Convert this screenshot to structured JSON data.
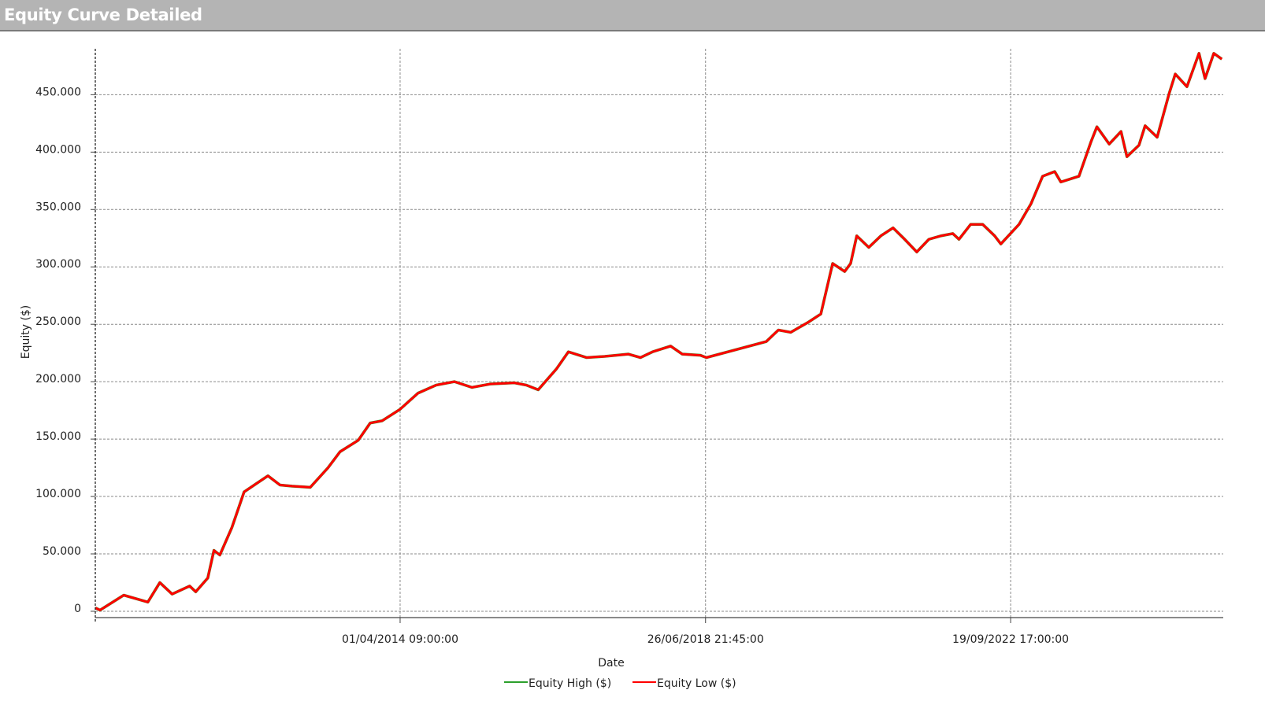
{
  "window": {
    "title": "Equity Curve Detailed"
  },
  "chart_data": {
    "type": "line",
    "title": "",
    "xlabel": "Date",
    "ylabel": "Equity ($)",
    "xlim": [
      "2010-01-08",
      "2025-09-01"
    ],
    "ylim": [
      -5500,
      490000
    ],
    "grid": true,
    "legend": "bottom-center",
    "colors": {
      "Equity High ($)": "#2ca02c",
      "Equity Low ($)": "#ff0000"
    },
    "x_ticks": [
      {
        "date": "2014-04-01T09:00:00",
        "label": "01/04/2014 09:00:00"
      },
      {
        "date": "2018-06-26T21:45:00",
        "label": "26/06/2018 21:45:00"
      },
      {
        "date": "2022-09-19T17:00:00",
        "label": "19/09/2022 17:00:00"
      }
    ],
    "y_ticks": [
      {
        "value": 0,
        "label": "0"
      },
      {
        "value": 50000,
        "label": "50.000"
      },
      {
        "value": 100000,
        "label": "100.000"
      },
      {
        "value": 150000,
        "label": "150.000"
      },
      {
        "value": 200000,
        "label": "200.000"
      },
      {
        "value": 250000,
        "label": "250.000"
      },
      {
        "value": 300000,
        "label": "300.000"
      },
      {
        "value": 350000,
        "label": "350.000"
      },
      {
        "value": 400000,
        "label": "400.000"
      },
      {
        "value": 450000,
        "label": "450.000"
      }
    ],
    "x": [
      "2010-01-08",
      "2010-02-01",
      "2010-06-01",
      "2010-10-01",
      "2010-12-01",
      "2011-02-01",
      "2011-05-01",
      "2011-06-01",
      "2011-08-01",
      "2011-09-01",
      "2011-10-01",
      "2011-12-01",
      "2012-02-01",
      "2012-04-01",
      "2012-06-01",
      "2012-08-01",
      "2012-10-01",
      "2013-01-01",
      "2013-04-01",
      "2013-06-01",
      "2013-09-01",
      "2013-11-01",
      "2014-01-01",
      "2014-04-01",
      "2014-07-01",
      "2014-10-01",
      "2015-01-01",
      "2015-04-01",
      "2015-07-01",
      "2015-11-01",
      "2016-01-01",
      "2016-03-01",
      "2016-06-01",
      "2016-08-01",
      "2016-11-01",
      "2017-02-01",
      "2017-06-01",
      "2017-08-01",
      "2017-10-01",
      "2018-01-01",
      "2018-03-01",
      "2018-06-01",
      "2018-07-01",
      "2018-12-01",
      "2019-05-01",
      "2019-07-01",
      "2019-09-01",
      "2019-12-01",
      "2020-02-01",
      "2020-04-01",
      "2020-06-01",
      "2020-07-01",
      "2020-08-01",
      "2020-10-01",
      "2020-12-01",
      "2021-02-01",
      "2021-04-01",
      "2021-06-01",
      "2021-08-01",
      "2021-10-01",
      "2021-12-01",
      "2022-01-01",
      "2022-03-01",
      "2022-05-01",
      "2022-07-01",
      "2022-08-01",
      "2022-11-01",
      "2023-01-01",
      "2023-03-01",
      "2023-05-01",
      "2023-06-01",
      "2023-09-01",
      "2023-11-01",
      "2023-12-01",
      "2024-02-01",
      "2024-04-01",
      "2024-05-01",
      "2024-07-01",
      "2024-08-01",
      "2024-10-01",
      "2024-12-01",
      "2025-01-01",
      "2025-03-01",
      "2025-05-01",
      "2025-06-01",
      "2025-07-15",
      "2025-08-25"
    ],
    "series": [
      {
        "name": "Equity High ($)",
        "values": [
          3000,
          1000,
          14000,
          8000,
          25000,
          15000,
          22000,
          17000,
          29000,
          53000,
          49000,
          73000,
          104000,
          111000,
          118000,
          110000,
          109000,
          108000,
          125000,
          139000,
          149000,
          164000,
          166000,
          176000,
          190000,
          197000,
          200000,
          195000,
          198000,
          199000,
          197000,
          193000,
          211000,
          226000,
          221000,
          222000,
          224000,
          221000,
          226000,
          231000,
          224000,
          223000,
          221000,
          228000,
          235000,
          245000,
          243000,
          252000,
          259000,
          303000,
          296000,
          303000,
          327000,
          317000,
          327000,
          334000,
          324000,
          313000,
          324000,
          327000,
          329000,
          324000,
          337000,
          337000,
          327000,
          320000,
          337000,
          355000,
          379000,
          383000,
          374000,
          379000,
          409000,
          422000,
          407000,
          418000,
          396000,
          406000,
          423000,
          413000,
          451000,
          468000,
          457000,
          486000,
          464000,
          486000,
          481000
        ]
      },
      {
        "name": "Equity Low ($)",
        "values": [
          3000,
          1000,
          14000,
          8000,
          25000,
          15000,
          22000,
          17000,
          29000,
          53000,
          49000,
          73000,
          104000,
          111000,
          118000,
          110000,
          109000,
          108000,
          125000,
          139000,
          149000,
          164000,
          166000,
          176000,
          190000,
          197000,
          200000,
          195000,
          198000,
          199000,
          197000,
          193000,
          211000,
          226000,
          221000,
          222000,
          224000,
          221000,
          226000,
          231000,
          224000,
          223000,
          221000,
          228000,
          235000,
          245000,
          243000,
          252000,
          259000,
          303000,
          296000,
          303000,
          327000,
          317000,
          327000,
          334000,
          324000,
          313000,
          324000,
          327000,
          329000,
          324000,
          337000,
          337000,
          327000,
          320000,
          337000,
          355000,
          379000,
          383000,
          374000,
          379000,
          409000,
          422000,
          407000,
          418000,
          396000,
          406000,
          423000,
          413000,
          451000,
          468000,
          457000,
          486000,
          464000,
          486000,
          481000
        ]
      }
    ]
  }
}
